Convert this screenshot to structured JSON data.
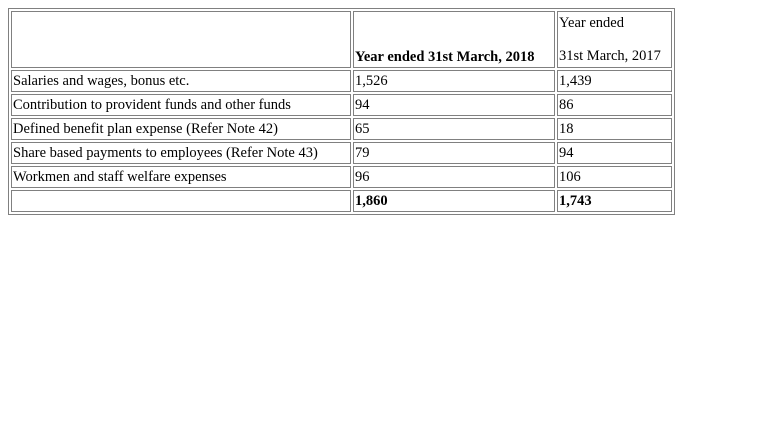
{
  "table": {
    "header": {
      "col1": "",
      "col2": "Year ended 31st March, 2018",
      "col3_line1": "Year ended",
      "col3_line2": "31st March, 2017"
    },
    "rows": [
      {
        "label": "Salaries and wages, bonus etc.",
        "y2018": "1,526",
        "y2017": "1,439"
      },
      {
        "label": "Contribution to provident funds and other funds",
        "y2018": "94",
        "y2017": "86"
      },
      {
        "label": "Defined benefit plan expense (Refer Note 42)",
        "y2018": "65",
        "y2017": "18"
      },
      {
        "label": "Share based payments to employees (Refer Note 43)",
        "y2018": "79",
        "y2017": "94"
      },
      {
        "label": "Workmen and staff welfare expenses",
        "y2018": "96",
        "y2017": "106"
      }
    ],
    "total": {
      "label": "",
      "y2018": "1,860",
      "y2017": "1,743"
    }
  }
}
